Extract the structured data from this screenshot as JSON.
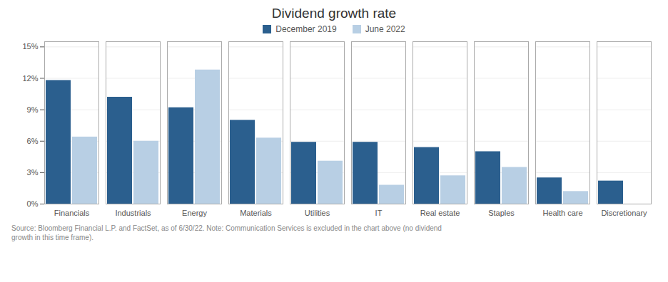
{
  "chart_data": {
    "type": "bar",
    "title": "Dividend growth rate",
    "categories": [
      "Financials",
      "Industrials",
      "Energy",
      "Materials",
      "Utilities",
      "IT",
      "Real estate",
      "Staples",
      "Health care",
      "Discretionary"
    ],
    "series": [
      {
        "name": "December 2019",
        "color": "#2b5f8e",
        "values": [
          11.8,
          10.2,
          9.2,
          8.0,
          5.9,
          5.9,
          5.4,
          5.0,
          2.5,
          2.2
        ]
      },
      {
        "name": "June 2022",
        "color": "#b8cfe4",
        "values": [
          6.4,
          6.0,
          12.8,
          6.3,
          4.1,
          1.8,
          2.7,
          3.5,
          1.2,
          0.0
        ]
      }
    ],
    "ylim": [
      0,
      15.5
    ],
    "yticks": [
      {
        "value": 0,
        "label": "0%"
      },
      {
        "value": 3,
        "label": "3%"
      },
      {
        "value": 6,
        "label": "6%"
      },
      {
        "value": 9,
        "label": "9%"
      },
      {
        "value": 12,
        "label": "12%"
      },
      {
        "value": 15,
        "label": "15%"
      }
    ],
    "grid": true,
    "legend": "top",
    "annotations": [
      "Source: Bloomberg Financial L.P. and FactSet, as of 6/30/22. Note: Communication Services is excluded in the chart above (no dividend\ngrowth in this time frame)."
    ]
  }
}
